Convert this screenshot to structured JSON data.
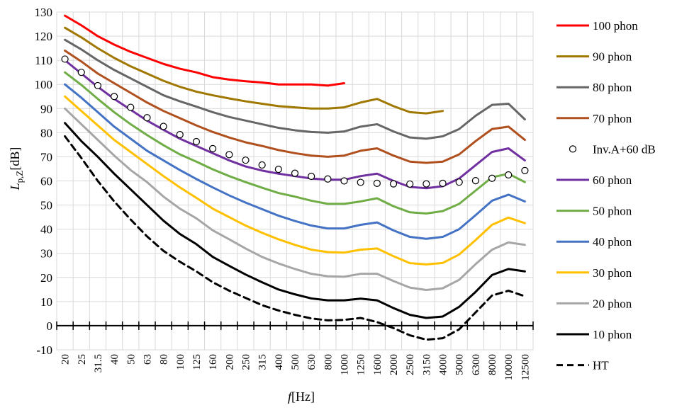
{
  "chart_data": {
    "type": "line",
    "xlabel_main": "f",
    "xlabel_unit": "[Hz]",
    "ylabel_main": "L",
    "ylabel_sub": "p,Z",
    "ylabel_unit": "[dB]",
    "ylim": [
      -10,
      130
    ],
    "y_ticks": [
      -10,
      0,
      10,
      20,
      30,
      40,
      50,
      60,
      70,
      80,
      90,
      100,
      110,
      120,
      130
    ],
    "categories": [
      "20",
      "25",
      "31.5",
      "40",
      "50",
      "63",
      "80",
      "100",
      "125",
      "160",
      "200",
      "250",
      "315",
      "400",
      "500",
      "630",
      "800",
      "1000",
      "1250",
      "1600",
      "2000",
      "2500",
      "3150",
      "4000",
      "5000",
      "6300",
      "8000",
      "10000",
      "12500"
    ],
    "grid": true,
    "legend_position": "right",
    "series": [
      {
        "name": "100 phon",
        "color": "#ff0000",
        "style": "solid",
        "values": [
          128.5,
          124.5,
          120,
          116.5,
          113.5,
          111,
          108.5,
          106.5,
          105,
          103,
          102,
          101.3,
          100.8,
          100,
          100,
          100,
          99.5,
          100.5,
          null,
          null,
          null,
          null,
          null,
          null,
          null,
          null,
          null,
          null,
          null
        ]
      },
      {
        "name": "90 phon",
        "color": "#a07800",
        "style": "solid",
        "values": [
          123.5,
          119.5,
          115,
          111,
          107.5,
          104.5,
          101.5,
          99,
          97,
          95.5,
          94.2,
          93,
          92,
          91,
          90.5,
          90,
          90,
          90.5,
          92.5,
          94,
          91,
          88.5,
          88,
          89,
          null,
          null,
          null,
          null,
          null
        ]
      },
      {
        "name": "80 phon",
        "color": "#666666",
        "style": "solid",
        "values": [
          118.5,
          114.5,
          110,
          106,
          102.5,
          99,
          95.5,
          93,
          90.8,
          88.5,
          86.5,
          85,
          83.5,
          82,
          81,
          80.3,
          80,
          80.5,
          82.5,
          83.5,
          80.5,
          78,
          77.5,
          78.5,
          81.5,
          87,
          91.5,
          92,
          85.5
        ]
      },
      {
        "name": "70 phon",
        "color": "#b0501e",
        "style": "solid",
        "values": [
          114,
          109.5,
          104.5,
          100.5,
          96.5,
          92.5,
          89,
          86,
          83,
          80.3,
          78,
          76,
          74.5,
          72.8,
          71.5,
          70.5,
          70,
          70.5,
          72.5,
          73.5,
          70.5,
          68,
          67.5,
          68,
          71,
          76.5,
          81.5,
          82.5,
          77
        ]
      },
      {
        "name": "Inv.A+60 dB",
        "color": "#000000",
        "style": "markers",
        "values": [
          110.5,
          105,
          99.5,
          95,
          90.5,
          86.2,
          82.6,
          79.2,
          76.3,
          73.4,
          70.9,
          68.6,
          66.6,
          64.8,
          63.2,
          61.9,
          60.8,
          60,
          59.4,
          59,
          58.8,
          58.7,
          58.8,
          59,
          59.5,
          60.1,
          61.1,
          62.5,
          64.3
        ]
      },
      {
        "name": "60 phon",
        "color": "#7030a0",
        "style": "solid",
        "values": [
          110,
          104.5,
          99,
          94,
          89.5,
          85,
          81.2,
          77.5,
          74.5,
          71.5,
          68.5,
          66,
          64.3,
          63,
          62,
          61,
          60.5,
          60.5,
          62,
          63,
          60,
          57.5,
          57,
          57.8,
          61,
          66.5,
          72,
          73.5,
          68.5
        ]
      },
      {
        "name": "50 phon",
        "color": "#70ad47",
        "style": "solid",
        "values": [
          105,
          99.8,
          94,
          88.5,
          83.5,
          79,
          74.8,
          71,
          68,
          64.8,
          62,
          59.5,
          57.2,
          55,
          53.5,
          51.8,
          50.5,
          50.5,
          51.5,
          52.8,
          49.5,
          47,
          46.5,
          47.5,
          50.5,
          56,
          61.5,
          63,
          59.5
        ]
      },
      {
        "name": "40 phon",
        "color": "#4472c4",
        "style": "solid",
        "values": [
          100,
          94.5,
          88.5,
          82.5,
          77.5,
          72.5,
          68.5,
          64.5,
          60.8,
          57.3,
          54,
          51,
          48.3,
          45.6,
          43.4,
          41.5,
          40.3,
          40.3,
          41.8,
          42.8,
          39.5,
          36.8,
          36,
          36.8,
          40,
          45.8,
          51.8,
          54.3,
          51.5
        ]
      },
      {
        "name": "30 phon",
        "color": "#ffc000",
        "style": "solid",
        "values": [
          95,
          89,
          83,
          77,
          72,
          67,
          62,
          57.3,
          53,
          48.5,
          45,
          41.5,
          38.5,
          35.8,
          33.5,
          31.5,
          30.5,
          30.3,
          31.5,
          32,
          28.8,
          25.9,
          25.4,
          26,
          29.5,
          35.5,
          41.8,
          44.8,
          42.5
        ]
      },
      {
        "name": "20 phon",
        "color": "#a6a6a6",
        "style": "solid",
        "values": [
          90,
          83.5,
          77,
          70.5,
          64.5,
          59.5,
          53.5,
          48.5,
          44.5,
          39.5,
          35.8,
          32,
          28.5,
          25.8,
          23.5,
          21.5,
          20.5,
          20.3,
          21.5,
          21.5,
          18.5,
          15.8,
          14.8,
          15.5,
          19,
          25.5,
          31.5,
          34.5,
          33.5
        ]
      },
      {
        "name": "10 phon",
        "color": "#000000",
        "style": "solid",
        "values": [
          84,
          76.5,
          70,
          63,
          56.5,
          50,
          43.5,
          38,
          33.8,
          28.5,
          24.8,
          21.2,
          18,
          15,
          13,
          11.3,
          10.5,
          10.5,
          11.2,
          10.5,
          7.3,
          4.5,
          3.2,
          3.8,
          7.8,
          14,
          21,
          23.5,
          22.5
        ]
      },
      {
        "name": "HT",
        "color": "#000000",
        "style": "dashed",
        "values": [
          78.5,
          69.5,
          60,
          51.5,
          44,
          37,
          31,
          26.5,
          22.5,
          18,
          14.5,
          11.5,
          8.5,
          6.3,
          4.5,
          3,
          2.2,
          2.4,
          3.2,
          1.5,
          -1,
          -4,
          -5.8,
          -5.2,
          -1.5,
          5.5,
          12.5,
          14.5,
          12.2
        ]
      }
    ]
  }
}
